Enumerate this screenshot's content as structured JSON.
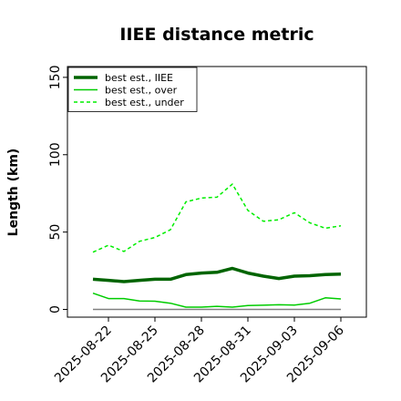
{
  "chart_data": {
    "type": "line",
    "title": "IIEE distance metric",
    "xlabel": "",
    "ylabel": "Length (km)",
    "ylim": [
      -5,
      157
    ],
    "yticks": [
      0,
      50,
      100,
      150
    ],
    "x": [
      "2025-08-21",
      "2025-08-22",
      "2025-08-23",
      "2025-08-24",
      "2025-08-25",
      "2025-08-26",
      "2025-08-27",
      "2025-08-28",
      "2025-08-29",
      "2025-08-30",
      "2025-08-31",
      "2025-09-01",
      "2025-09-02",
      "2025-09-03",
      "2025-09-04",
      "2025-09-05",
      "2025-09-06"
    ],
    "xticks": [
      "2025-08-22",
      "2025-08-25",
      "2025-08-28",
      "2025-08-31",
      "2025-09-03",
      "2025-09-06"
    ],
    "legend_position": "top-left",
    "grid": false,
    "reference_line": 0,
    "series": [
      {
        "name": "best est., IIEE",
        "color": "#006400",
        "style": "solid-thick",
        "values": [
          19.5,
          18.8,
          18.0,
          18.8,
          19.5,
          19.5,
          22.5,
          23.5,
          24.0,
          26.5,
          23.5,
          21.5,
          20.0,
          21.5,
          21.8,
          22.5,
          22.8
        ]
      },
      {
        "name": "best est., over",
        "color": "#00cc00",
        "style": "solid",
        "values": [
          10.5,
          7.0,
          7.0,
          5.5,
          5.3,
          4.0,
          1.5,
          1.5,
          2.0,
          1.5,
          2.5,
          2.7,
          3.0,
          2.8,
          4.0,
          7.5,
          6.8
        ]
      },
      {
        "name": "best est., under",
        "color": "#00ee00",
        "style": "dashed",
        "values": [
          37.0,
          41.5,
          37.5,
          44.0,
          46.5,
          51.5,
          69.5,
          72.0,
          72.5,
          81.0,
          64.0,
          57.0,
          58.0,
          62.5,
          56.0,
          52.5,
          54.0
        ]
      }
    ]
  }
}
